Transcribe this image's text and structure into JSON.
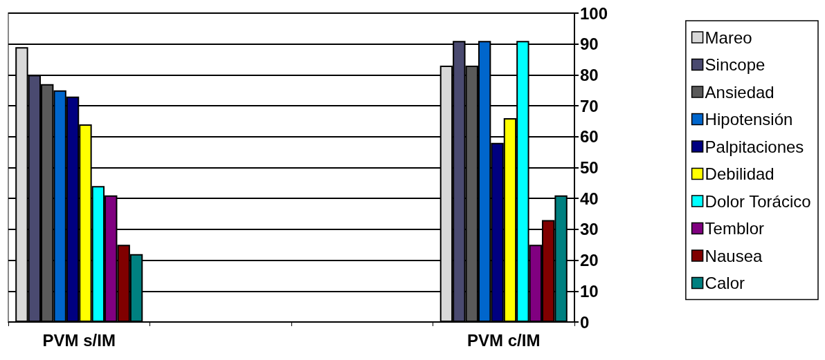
{
  "chart_data": {
    "type": "bar",
    "categories": [
      "PVM s/IM",
      null,
      null,
      "PVM c/IM"
    ],
    "series": [
      {
        "name": "Mareo",
        "color": "#d9d9d9",
        "values": [
          89,
          null,
          null,
          83
        ]
      },
      {
        "name": "Sincope",
        "color": "#4a4a70",
        "values": [
          80,
          null,
          null,
          91
        ]
      },
      {
        "name": "Ansiedad",
        "color": "#5a5a5a",
        "values": [
          77,
          null,
          null,
          83
        ]
      },
      {
        "name": "Hipotensión",
        "color": "#0066cc",
        "values": [
          75,
          null,
          null,
          91
        ]
      },
      {
        "name": "Palpitaciones",
        "color": "#000080",
        "values": [
          73,
          null,
          null,
          58
        ]
      },
      {
        "name": "Debilidad",
        "color": "#ffff00",
        "values": [
          64,
          null,
          null,
          66
        ]
      },
      {
        "name": "Dolor Torácico",
        "color": "#00ffff",
        "values": [
          44,
          null,
          null,
          91
        ]
      },
      {
        "name": "Temblor",
        "color": "#800080",
        "values": [
          41,
          null,
          null,
          25
        ]
      },
      {
        "name": "Nausea",
        "color": "#800000",
        "values": [
          25,
          null,
          null,
          33
        ]
      },
      {
        "name": "Calor",
        "color": "#008080",
        "values": [
          22,
          null,
          null,
          41
        ]
      }
    ],
    "ylim": [
      0,
      100
    ],
    "yticks": [
      0,
      10,
      20,
      30,
      40,
      50,
      60,
      70,
      80,
      90,
      100
    ],
    "grid": "y",
    "legend": "right"
  }
}
